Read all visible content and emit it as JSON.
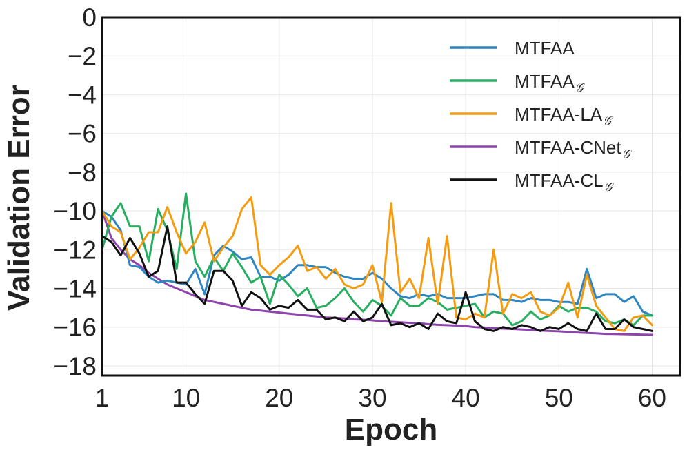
{
  "chart_data": {
    "type": "line",
    "title": "",
    "xlabel": "Epoch",
    "ylabel": "Validation Error",
    "xlim": [
      1,
      63
    ],
    "ylim": [
      -18.5,
      0
    ],
    "xticks": [
      1,
      10,
      20,
      30,
      40,
      50,
      60
    ],
    "yticks": [
      0,
      -2,
      -4,
      -6,
      -8,
      -10,
      -12,
      -14,
      -16,
      -18
    ],
    "tick_labels_x": [
      "1",
      "10",
      "20",
      "30",
      "40",
      "50",
      "60"
    ],
    "tick_labels_y": [
      "0",
      "−2",
      "−4",
      "−6",
      "−8",
      "−10",
      "−12",
      "−14",
      "−16",
      "−18"
    ],
    "grid": true,
    "legend_position": "top-right",
    "x": [
      1,
      2,
      3,
      4,
      5,
      6,
      7,
      8,
      9,
      10,
      11,
      12,
      13,
      14,
      15,
      16,
      17,
      18,
      19,
      20,
      21,
      22,
      23,
      24,
      25,
      26,
      27,
      28,
      29,
      30,
      31,
      32,
      33,
      34,
      35,
      36,
      37,
      38,
      39,
      40,
      41,
      42,
      43,
      44,
      45,
      46,
      47,
      48,
      49,
      50,
      51,
      52,
      53,
      54,
      55,
      56,
      57,
      58,
      59,
      60
    ],
    "series": [
      {
        "name": "MTFAA",
        "subscript": "",
        "color": "#2e86c1",
        "values": [
          -10.0,
          -10.3,
          -11.0,
          -12.8,
          -12.9,
          -13.4,
          -13.7,
          -13.6,
          -13.7,
          -13.8,
          -13.0,
          -14.3,
          -12.3,
          -11.8,
          -12.1,
          -12.5,
          -12.4,
          -13.4,
          -13.4,
          -13.6,
          -13.3,
          -12.8,
          -12.8,
          -12.9,
          -12.9,
          -13.2,
          -13.4,
          -13.5,
          -13.5,
          -13.2,
          -13.5,
          -14.0,
          -14.4,
          -14.5,
          -14.3,
          -14.4,
          -14.3,
          -14.5,
          -14.5,
          -14.5,
          -14.4,
          -14.3,
          -14.3,
          -14.6,
          -14.6,
          -14.7,
          -14.5,
          -14.6,
          -14.6,
          -14.7,
          -14.7,
          -14.8,
          -13.0,
          -14.5,
          -14.3,
          -14.3,
          -14.7,
          -14.4,
          -15.2,
          -15.4
        ]
      },
      {
        "name": "MTFAA",
        "subscript": "𝒢",
        "color": "#27ae60",
        "values": [
          -12.0,
          -10.3,
          -9.6,
          -10.8,
          -10.8,
          -12.6,
          -9.9,
          -11.0,
          -13.0,
          -9.1,
          -12.6,
          -13.4,
          -12.4,
          -13.1,
          -12.2,
          -12.9,
          -13.7,
          -13.4,
          -14.8,
          -13.3,
          -13.8,
          -14.4,
          -14.0,
          -15.0,
          -14.9,
          -14.5,
          -14.0,
          -14.7,
          -15.2,
          -14.6,
          -14.9,
          -15.4,
          -14.5,
          -14.9,
          -14.9,
          -14.5,
          -14.7,
          -15.1,
          -15.0,
          -14.9,
          -14.8,
          -15.5,
          -15.2,
          -15.3,
          -15.9,
          -15.7,
          -15.2,
          -15.6,
          -15.4,
          -14.9,
          -15.2,
          -15.0,
          -15.0,
          -15.2,
          -15.7,
          -15.8,
          -15.6,
          -15.9,
          -15.4,
          -15.4
        ]
      },
      {
        "name": "MTFAA-LA",
        "subscript": "𝒢",
        "color": "#f39c12",
        "values": [
          -10.0,
          -10.8,
          -11.1,
          -12.5,
          -11.9,
          -11.1,
          -11.1,
          -9.8,
          -11.1,
          -12.2,
          -11.6,
          -10.6,
          -12.6,
          -11.9,
          -11.3,
          -9.9,
          -9.3,
          -12.8,
          -13.3,
          -12.8,
          -12.4,
          -11.8,
          -13.1,
          -12.9,
          -13.5,
          -13.0,
          -13.8,
          -14.0,
          -13.8,
          -12.8,
          -14.7,
          -9.6,
          -14.2,
          -13.5,
          -14.5,
          -11.4,
          -14.8,
          -11.3,
          -15.5,
          -15.6,
          -15.3,
          -15.5,
          -12.0,
          -15.3,
          -14.3,
          -14.5,
          -14.2,
          -15.2,
          -15.4,
          -15.0,
          -13.7,
          -15.5,
          -13.3,
          -14.9,
          -15.5,
          -16.1,
          -16.2,
          -15.5,
          -15.4,
          -15.9
        ]
      },
      {
        "name": "MTFAA-CNet",
        "subscript": "𝒢",
        "color": "#8e44ad",
        "values": [
          -10.0,
          -11.4,
          -12.0,
          -12.5,
          -12.8,
          -13.2,
          -13.5,
          -13.8,
          -14.0,
          -14.2,
          -14.4,
          -14.6,
          -14.7,
          -14.8,
          -14.9,
          -15.0,
          -15.1,
          -15.15,
          -15.2,
          -15.25,
          -15.3,
          -15.35,
          -15.4,
          -15.45,
          -15.5,
          -15.52,
          -15.55,
          -15.6,
          -15.62,
          -15.65,
          -15.7,
          -15.72,
          -15.75,
          -15.78,
          -15.8,
          -15.85,
          -15.88,
          -15.9,
          -15.92,
          -15.95,
          -16.0,
          -16.02,
          -16.05,
          -16.08,
          -16.1,
          -16.12,
          -16.15,
          -16.18,
          -16.2,
          -16.22,
          -16.25,
          -16.28,
          -16.3,
          -16.32,
          -16.35,
          -16.36,
          -16.37,
          -16.38,
          -16.39,
          -16.4
        ]
      },
      {
        "name": "MTFAA-CL",
        "subscript": "𝒢",
        "color": "#111111",
        "values": [
          -11.3,
          -11.6,
          -12.3,
          -11.4,
          -12.2,
          -13.4,
          -13.1,
          -10.8,
          -13.7,
          -13.7,
          -14.3,
          -14.8,
          -13.1,
          -13.1,
          -13.6,
          -14.9,
          -14.2,
          -14.5,
          -15.1,
          -14.9,
          -15.0,
          -14.6,
          -15.1,
          -15.1,
          -15.6,
          -15.5,
          -15.7,
          -15.2,
          -15.7,
          -15.5,
          -14.8,
          -15.9,
          -15.8,
          -16.0,
          -15.8,
          -16.1,
          -15.3,
          -15.7,
          -15.8,
          -14.2,
          -15.7,
          -16.1,
          -16.2,
          -16.0,
          -16.1,
          -15.9,
          -16.0,
          -16.2,
          -16.0,
          -16.1,
          -15.8,
          -16.1,
          -16.2,
          -15.3,
          -16.1,
          -16.1,
          -15.6,
          -16.0,
          -16.1,
          -16.2
        ]
      }
    ]
  }
}
